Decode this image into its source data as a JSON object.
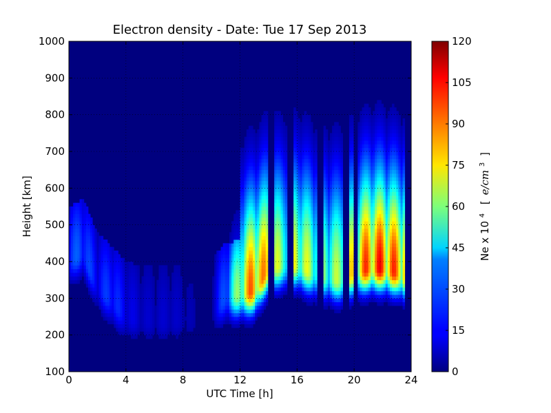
{
  "chart_data": {
    "type": "heatmap",
    "title": "Electron density - Date: Tue 17 Sep 2013",
    "xlabel": "UTC Time [h]",
    "ylabel": "Height [km]",
    "xlim": [
      0,
      24
    ],
    "ylim": [
      100,
      1000
    ],
    "x_ticks": [
      "0",
      "4",
      "8",
      "12",
      "16",
      "20",
      "24"
    ],
    "y_ticks": [
      "100",
      "200",
      "300",
      "400",
      "500",
      "600",
      "700",
      "800",
      "900",
      "1000"
    ],
    "grid": true,
    "colormap": "jet",
    "colorbar": {
      "label_prefix": "Ne x 10",
      "label_exponent": "4",
      "label_unit_open": "[",
      "label_unit": "e/cm",
      "label_unit_exponent": "3",
      "label_unit_close": "]",
      "range": [
        0,
        120
      ],
      "ticks": [
        "0",
        "15",
        "30",
        "45",
        "60",
        "75",
        "90",
        "105",
        "120"
      ]
    },
    "approx_data": {
      "time_hours": [
        0,
        1,
        2,
        3,
        4,
        5,
        6,
        7,
        8,
        9,
        10,
        11,
        12,
        13,
        14,
        15,
        16,
        17,
        18,
        19,
        20,
        21,
        22,
        23,
        23.5
      ],
      "peak_height_km": [
        400,
        420,
        330,
        290,
        250,
        240,
        235,
        235,
        240,
        235,
        260,
        300,
        310,
        320,
        380,
        390,
        390,
        370,
        360,
        350,
        370,
        380,
        380,
        370,
        360
      ],
      "peak_density": [
        25,
        28,
        18,
        25,
        15,
        10,
        9,
        10,
        8,
        5,
        8,
        30,
        75,
        105,
        85,
        65,
        80,
        70,
        65,
        70,
        85,
        105,
        108,
        100,
        100
      ],
      "low_density_gaps_hours": [
        14.2,
        15.5,
        17.6,
        19.4,
        20.1
      ]
    }
  }
}
